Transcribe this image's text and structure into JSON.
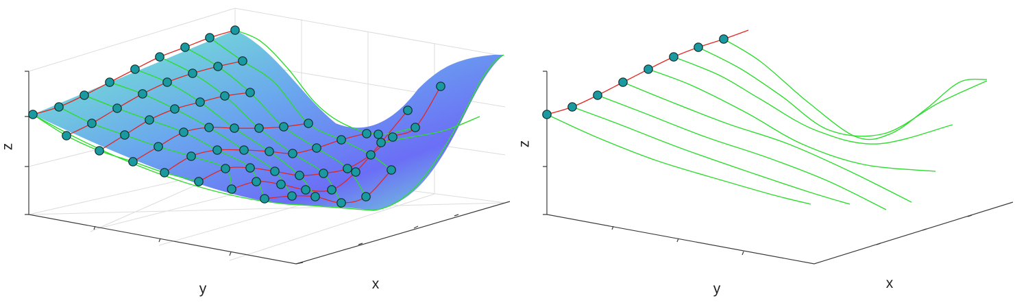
{
  "chart_data": [
    {
      "type": "surface",
      "xlabel": "x",
      "ylabel": "y",
      "zlabel": "z",
      "grid": true,
      "colors": {
        "surface_low": "#6e6cf6",
        "surface_high": "#76f7c4",
        "ridge_curves": "#e2261f",
        "flow_curves": "#2ddc2d",
        "markers": "#1a9aa0"
      },
      "series": [
        {
          "role": "red-curves",
          "count": 6
        },
        {
          "role": "green-curves",
          "count": 10
        },
        {
          "role": "markers",
          "count": 60
        }
      ]
    },
    {
      "type": "line",
      "xlabel": "x",
      "ylabel": "y",
      "zlabel": "z",
      "grid": false,
      "colors": {
        "ridge_curve": "#e2261f",
        "flow_curves": "#2ddc2d",
        "markers": "#1a9aa0"
      },
      "series": [
        {
          "role": "red-curve",
          "count": 1
        },
        {
          "role": "green-curves",
          "count": 8
        },
        {
          "role": "markers",
          "count": 8
        }
      ]
    }
  ]
}
